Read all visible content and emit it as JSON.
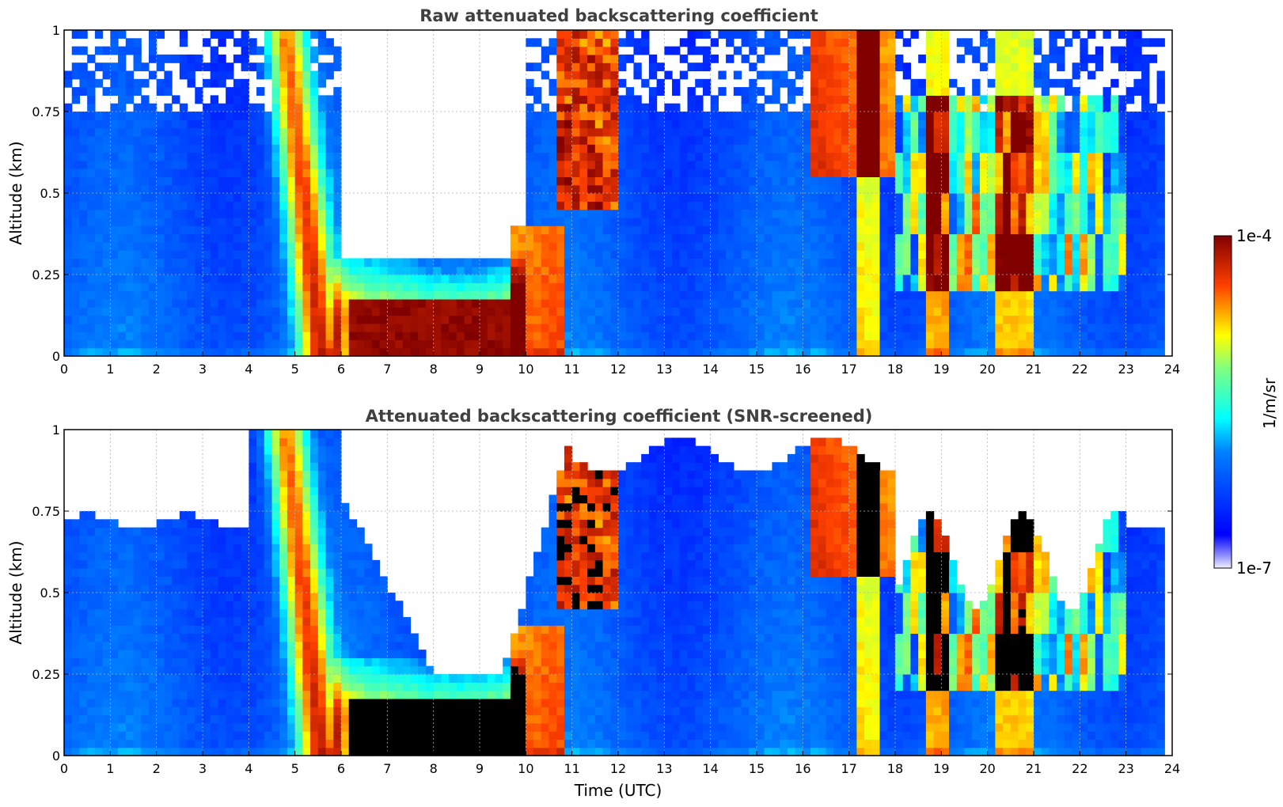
{
  "chart_data": [
    {
      "type": "heatmap",
      "title": "Raw attenuated backscattering coefficient",
      "xlabel": "",
      "ylabel": "Altitude (km)",
      "xlim": [
        0,
        24
      ],
      "ylim": [
        0,
        1
      ],
      "x_ticks": [
        "0",
        "1",
        "2",
        "3",
        "4",
        "5",
        "6",
        "7",
        "8",
        "9",
        "10",
        "11",
        "12",
        "13",
        "14",
        "15",
        "16",
        "17",
        "18",
        "19",
        "20",
        "21",
        "22",
        "23",
        "24"
      ],
      "y_ticks": [
        "0",
        "0.25",
        "0.5",
        "0.75",
        "1"
      ],
      "grid": true,
      "screened": false
    },
    {
      "type": "heatmap",
      "title": "Attenuated backscattering coefficient (SNR-screened)",
      "xlabel": "Time (UTC)",
      "ylabel": "Altitude (km)",
      "xlim": [
        0,
        24
      ],
      "ylim": [
        0,
        1
      ],
      "x_ticks": [
        "0",
        "1",
        "2",
        "3",
        "4",
        "5",
        "6",
        "7",
        "8",
        "9",
        "10",
        "11",
        "12",
        "13",
        "14",
        "15",
        "16",
        "17",
        "18",
        "19",
        "20",
        "21",
        "22",
        "23",
        "24"
      ],
      "y_ticks": [
        "0",
        "0.25",
        "0.5",
        "0.75",
        "1"
      ],
      "grid": true,
      "screened": true
    }
  ],
  "colorbar": {
    "label": "1/m/sr",
    "max_label": "1e-4",
    "min_label": "1e-7",
    "scale": "log",
    "colormap": "jet",
    "placement": "right"
  },
  "colors": {
    "title": "#404040",
    "grid": "#b0b0b0",
    "saturated_screened": "#000000"
  }
}
